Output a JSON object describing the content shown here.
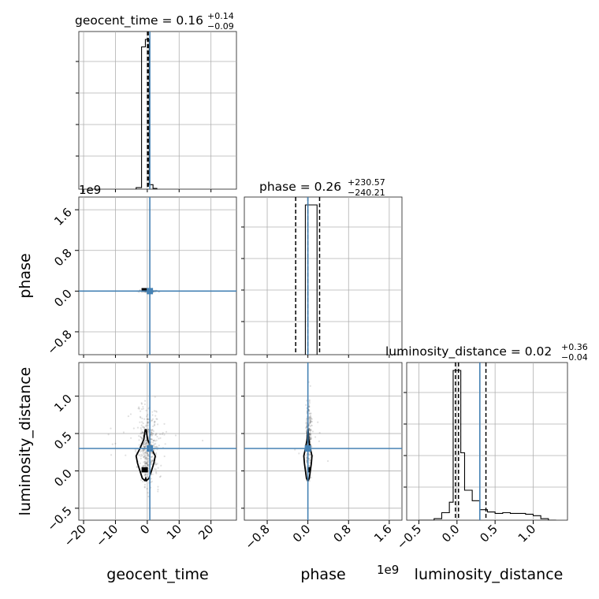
{
  "chart_data": {
    "type": "corner",
    "parameters": [
      "geocent_time",
      "phase",
      "luminosity_distance"
    ],
    "axis_labels": {
      "geocent_time": "geocent_time",
      "phase": "phase",
      "luminosity_distance": "luminosity_distance"
    },
    "titles": [
      {
        "param": "geocent_time",
        "text": "geocent_time = 0.16",
        "plus": "+0.14",
        "minus": "−0.09"
      },
      {
        "param": "phase",
        "text": "phase = 0.26",
        "plus": "+230.57",
        "minus": "−240.21"
      },
      {
        "param": "luminosity_distance",
        "text": "luminosity_distance = 0.02",
        "plus": "+0.36",
        "minus": "−0.04"
      }
    ],
    "ranges": {
      "geocent_time": [
        -21.5,
        28
      ],
      "phase": [
        -1250000000.0,
        1850000000.0
      ],
      "luminosity_distance": [
        -0.66,
        1.45
      ]
    },
    "ticks": {
      "geocent_time": [
        -20,
        -10,
        0,
        10,
        20
      ],
      "geocent_time_labels": [
        "−20",
        "−10",
        "0",
        "10",
        "20"
      ],
      "phase": [
        -800000000.0,
        0,
        800000000.0,
        1600000000.0
      ],
      "phase_labels": [
        "−0.8",
        "0.0",
        "0.8",
        "1.6"
      ],
      "luminosity_distance": [
        -0.5,
        0,
        0.5,
        1.0
      ],
      "luminosity_distance_labels": [
        "−0.5",
        "0.0",
        "0.5",
        "1.0"
      ]
    },
    "offset_text": {
      "phase_y": "1e9",
      "phase_x": "1e9"
    },
    "truths": {
      "geocent_time": 0.8,
      "phase": 0.0,
      "luminosity_distance": 0.3
    },
    "quantiles": {
      "geocent_time": [
        0.07,
        0.16,
        0.3
      ],
      "phase": [
        -240000000.0,
        0.0,
        230000000.0
      ],
      "luminosity_distance": [
        -0.02,
        0.02,
        0.38
      ]
    },
    "histograms": {
      "geocent_time": {
        "bins": [
          -3.5,
          -1.8,
          -0.6,
          0.6,
          1.8,
          3.0
        ],
        "counts": [
          0.01,
          0.95,
          1.0,
          0.03,
          0.005
        ]
      },
      "phase": {
        "bins": [
          -50000000.0,
          0.0,
          180000000.0
        ],
        "counts": [
          1.0,
          1.0
        ]
      },
      "luminosity_distance": {
        "bins": [
          -0.5,
          -0.4,
          -0.3,
          -0.2,
          -0.1,
          -0.05,
          0.0,
          0.05,
          0.1,
          0.2,
          0.3,
          0.4,
          0.5,
          0.6,
          0.7,
          0.8,
          0.9,
          1.0,
          1.1,
          1.2,
          1.3
        ],
        "counts": [
          0,
          0,
          0.01,
          0.05,
          0.12,
          1.0,
          1.0,
          0.45,
          0.2,
          0.13,
          0.07,
          0.055,
          0.045,
          0.05,
          0.045,
          0.045,
          0.04,
          0.03,
          0.01,
          0.0
        ]
      }
    },
    "grid": true,
    "truth_color": "#4682b4",
    "sample_color": "#000000"
  }
}
